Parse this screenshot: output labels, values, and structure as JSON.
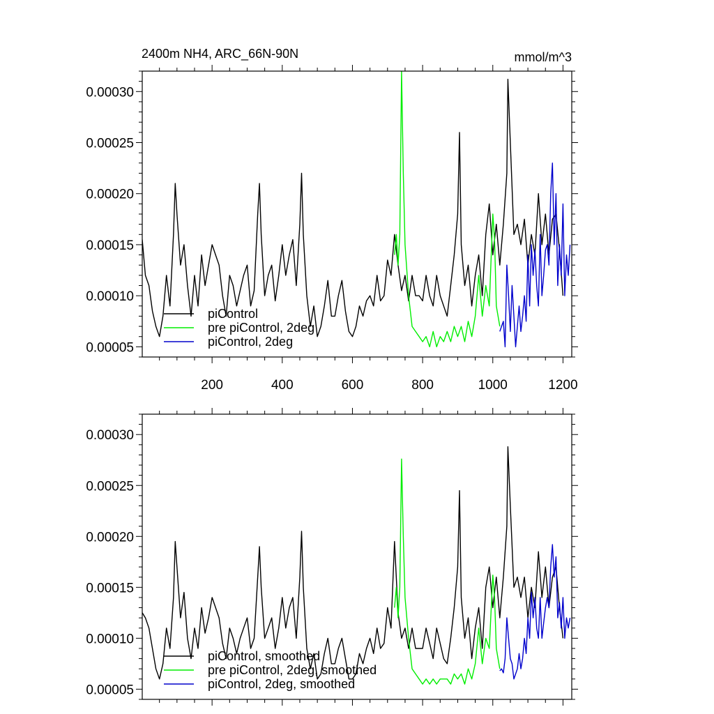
{
  "figure": {
    "title_left": "2400m NH4, ARC_66N-90N",
    "title_right": "mmol/m^3"
  },
  "chart_data": [
    {
      "type": "line",
      "panel": "top",
      "title": "2400m NH4, ARC_66N-90N",
      "units": "mmol/m^3",
      "xlim": [
        1,
        1225
      ],
      "ylim": [
        4e-05,
        0.00032
      ],
      "xticks": [
        200,
        400,
        600,
        800,
        1000,
        1200
      ],
      "yticks": [
        5e-05,
        0.0001,
        0.00015,
        0.0002,
        0.00025,
        0.0003
      ],
      "ytick_labels": [
        "0.00005",
        "0.00010",
        "0.00015",
        "0.00020",
        "0.00025",
        "0.00030"
      ],
      "grid": false,
      "legend": "bottom-left",
      "series": [
        {
          "name": "piControl",
          "color": "#000000",
          "x": [
            1,
            10,
            20,
            30,
            40,
            50,
            60,
            70,
            80,
            90,
            95,
            100,
            110,
            120,
            130,
            140,
            150,
            160,
            170,
            180,
            190,
            200,
            210,
            220,
            230,
            240,
            250,
            260,
            270,
            280,
            290,
            300,
            310,
            320,
            330,
            335,
            340,
            350,
            360,
            370,
            380,
            390,
            400,
            410,
            420,
            430,
            440,
            450,
            455,
            460,
            470,
            480,
            490,
            500,
            510,
            520,
            530,
            540,
            550,
            560,
            570,
            580,
            590,
            600,
            610,
            620,
            630,
            640,
            650,
            660,
            670,
            680,
            690,
            700,
            710,
            720,
            730,
            740,
            750,
            760,
            770,
            780,
            790,
            800,
            810,
            820,
            830,
            840,
            850,
            860,
            870,
            880,
            890,
            900,
            905,
            910,
            920,
            930,
            940,
            950,
            960,
            970,
            980,
            990,
            1000,
            1010,
            1020,
            1030,
            1040,
            1043,
            1050,
            1060,
            1070,
            1080,
            1090,
            1100,
            1110,
            1120,
            1130,
            1140,
            1150,
            1160,
            1170,
            1180,
            1190,
            1200
          ],
          "values": [
            0.000155,
            0.00012,
            0.00011,
            8.5e-05,
            7e-05,
            6e-05,
            8e-05,
            0.00012,
            9e-05,
            0.00016,
            0.00021,
            0.00018,
            0.00013,
            0.00015,
            0.00011,
            8e-05,
            0.00012,
            9e-05,
            0.00014,
            0.00011,
            0.00013,
            0.00015,
            0.00014,
            0.00013,
            0.0001,
            8e-05,
            0.00012,
            0.00011,
            9e-05,
            0.000105,
            0.00012,
            0.00013,
            9e-05,
            0.000105,
            0.00018,
            0.00021,
            0.00016,
            0.0001,
            0.00012,
            0.00013,
            9.5e-05,
            0.00012,
            0.00015,
            0.00012,
            0.00014,
            0.000155,
            0.00011,
            0.00017,
            0.00022,
            0.00016,
            0.0001,
            7e-05,
            9e-05,
            6e-05,
            7e-05,
            9e-05,
            0.000115,
            8e-05,
            8e-05,
            0.0001,
            0.000115,
            8.5e-05,
            6.5e-05,
            6e-05,
            7e-05,
            9e-05,
            8e-05,
            9.5e-05,
            0.0001,
            9e-05,
            0.00012,
            9.5e-05,
            0.0001,
            0.000135,
            0.00012,
            0.00016,
            0.00013,
            0.000105,
            0.00012,
            9.5e-05,
            0.00012,
            0.0001,
            0.0001,
            9.5e-05,
            0.00012,
            0.0001,
            9e-05,
            0.00012,
            0.0001,
            9e-05,
            8e-05,
            0.00011,
            0.00014,
            0.00018,
            0.00026,
            0.00015,
            0.00011,
            0.00013,
            9e-05,
            0.00012,
            0.00014,
            0.0001,
            0.00016,
            0.00019,
            0.00014,
            0.00017,
            0.00013,
            0.00017,
            0.00022,
            0.000312,
            0.00025,
            0.00016,
            0.00017,
            0.00015,
            0.000175,
            0.00013,
            0.00016,
            0.00014,
            0.0002,
            0.00015,
            0.00018,
            0.00014,
            0.000175,
            0.00018,
            0.000145,
            0.0001
          ]
        },
        {
          "name": "pre piControl, 2deg",
          "color": "#00ee00",
          "x": [
            720,
            725,
            730,
            735,
            740,
            745,
            750,
            760,
            770,
            780,
            790,
            800,
            810,
            820,
            830,
            840,
            850,
            860,
            870,
            880,
            890,
            900,
            910,
            920,
            930,
            940,
            950,
            960,
            970,
            980,
            990,
            1000,
            1005,
            1010,
            1020
          ],
          "values": [
            0.00014,
            0.00016,
            0.00013,
            0.00016,
            0.00032,
            0.00022,
            0.00015,
            0.0001,
            7e-05,
            6.5e-05,
            6e-05,
            5.5e-05,
            6e-05,
            5e-05,
            6.5e-05,
            5e-05,
            6e-05,
            5.5e-05,
            6.5e-05,
            5.5e-05,
            7e-05,
            6e-05,
            7e-05,
            5.5e-05,
            7.5e-05,
            6e-05,
            8e-05,
            0.00012,
            8e-05,
            0.00011,
            9e-05,
            0.00018,
            0.000155,
            9e-05,
            7e-05
          ]
        },
        {
          "name": "piControl, 2deg",
          "color": "#0000cc",
          "x": [
            1020,
            1025,
            1030,
            1035,
            1040,
            1045,
            1050,
            1055,
            1060,
            1065,
            1070,
            1075,
            1080,
            1085,
            1090,
            1095,
            1100,
            1105,
            1110,
            1115,
            1120,
            1125,
            1130,
            1135,
            1140,
            1145,
            1150,
            1155,
            1160,
            1165,
            1170,
            1175,
            1180,
            1185,
            1190,
            1195,
            1200,
            1205,
            1210,
            1215,
            1220
          ],
          "values": [
            6.5e-05,
            7e-05,
            7.5e-05,
            5e-05,
            0.00013,
            0.0001,
            6.5e-05,
            0.00011,
            8e-05,
            5e-05,
            7e-05,
            9e-05,
            6.5e-05,
            8e-05,
            0.0001,
            7.5e-05,
            0.00014,
            9e-05,
            0.00015,
            0.00012,
            0.000145,
            0.00011,
            9e-05,
            0.00016,
            0.0001,
            0.00012,
            0.000145,
            0.00015,
            0.00013,
            0.0002,
            0.00023,
            0.00015,
            0.0002,
            0.00011,
            0.00015,
            0.00012,
            0.00019,
            0.0001,
            0.00014,
            0.00012,
            0.00015
          ]
        }
      ]
    },
    {
      "type": "line",
      "panel": "bottom",
      "xlim": [
        1,
        1225
      ],
      "ylim": [
        4e-05,
        0.00032
      ],
      "xticks": [
        200,
        400,
        600,
        800,
        1000,
        1200
      ],
      "yticks": [
        5e-05,
        0.0001,
        0.00015,
        0.0002,
        0.00025,
        0.0003
      ],
      "ytick_labels": [
        "0.00005",
        "0.00010",
        "0.00015",
        "0.00020",
        "0.00025",
        "0.00030"
      ],
      "grid": false,
      "legend": "bottom-left",
      "series": [
        {
          "name": "piControl, smoothed",
          "color": "#000000",
          "x": [
            1,
            10,
            20,
            30,
            40,
            50,
            60,
            70,
            80,
            90,
            95,
            100,
            110,
            120,
            130,
            140,
            150,
            160,
            170,
            180,
            190,
            200,
            210,
            220,
            230,
            240,
            250,
            260,
            270,
            280,
            290,
            300,
            310,
            320,
            330,
            335,
            340,
            350,
            360,
            370,
            380,
            390,
            400,
            410,
            420,
            430,
            440,
            450,
            455,
            460,
            470,
            480,
            490,
            500,
            510,
            520,
            530,
            540,
            550,
            560,
            570,
            580,
            590,
            600,
            610,
            620,
            630,
            640,
            650,
            660,
            670,
            680,
            690,
            700,
            710,
            720,
            730,
            740,
            750,
            760,
            770,
            780,
            790,
            800,
            810,
            820,
            830,
            840,
            850,
            860,
            870,
            880,
            890,
            900,
            905,
            910,
            920,
            930,
            940,
            950,
            960,
            970,
            980,
            990,
            1000,
            1010,
            1020,
            1030,
            1040,
            1043,
            1050,
            1060,
            1070,
            1080,
            1090,
            1100,
            1110,
            1120,
            1130,
            1140,
            1150,
            1160,
            1170,
            1180,
            1190,
            1200
          ],
          "values": [
            0.000125,
            0.00012,
            0.00011,
            9e-05,
            7e-05,
            6e-05,
            7.5e-05,
            0.00011,
            9e-05,
            0.00014,
            0.000195,
            0.00017,
            0.00012,
            0.000145,
            0.0001,
            8e-05,
            0.00011,
            9e-05,
            0.00013,
            0.000105,
            0.00012,
            0.00014,
            0.00013,
            0.00012,
            9.5e-05,
            8e-05,
            0.00011,
            0.0001,
            8.5e-05,
            0.0001,
            0.00011,
            0.00012,
            9e-05,
            0.0001,
            0.00016,
            0.00019,
            0.00015,
            0.0001,
            0.00011,
            0.00012,
            9e-05,
            0.00011,
            0.00014,
            0.00011,
            0.00013,
            0.00014,
            0.0001,
            0.00016,
            0.000205,
            0.00015,
            9e-05,
            7e-05,
            8.5e-05,
            6e-05,
            6.5e-05,
            8.5e-05,
            0.0001,
            7.5e-05,
            7.5e-05,
            9e-05,
            0.0001,
            8e-05,
            6e-05,
            6e-05,
            6.5e-05,
            8.5e-05,
            7.5e-05,
            9e-05,
            0.0001,
            8.5e-05,
            0.00011,
            9e-05,
            9.5e-05,
            0.00013,
            0.00011,
            0.000195,
            0.000125,
            0.0001,
            0.00011,
            9e-05,
            0.00011,
            9e-05,
            9e-05,
            9e-05,
            0.00011,
            9.5e-05,
            8e-05,
            0.00011,
            9.5e-05,
            8e-05,
            7.5e-05,
            0.0001,
            0.00013,
            0.00017,
            0.000245,
            0.00014,
            0.0001,
            0.00012,
            8e-05,
            0.00011,
            0.00013,
            9e-05,
            0.00015,
            0.00017,
            0.00013,
            0.00016,
            0.00012,
            0.00016,
            0.00021,
            0.000288,
            0.00023,
            0.00015,
            0.00016,
            0.00014,
            0.00016,
            0.00012,
            0.00015,
            0.00013,
            0.000185,
            0.00014,
            0.00017,
            0.00013,
            0.00016,
            0.00017,
            0.00013,
            0.0001
          ]
        },
        {
          "name": "pre piControl, 2deg, smoothed",
          "color": "#00ee00",
          "x": [
            720,
            725,
            730,
            735,
            740,
            745,
            750,
            760,
            770,
            780,
            790,
            800,
            810,
            820,
            830,
            840,
            850,
            860,
            870,
            880,
            890,
            900,
            910,
            920,
            930,
            940,
            950,
            960,
            970,
            980,
            990,
            1000,
            1005,
            1010,
            1020
          ],
          "values": [
            0.00013,
            0.00015,
            0.00012,
            0.00015,
            0.000276,
            0.0002,
            0.00014,
            0.0001,
            7e-05,
            6.5e-05,
            6e-05,
            5.5e-05,
            6e-05,
            5.5e-05,
            6e-05,
            5.5e-05,
            6e-05,
            6e-05,
            6e-05,
            5.5e-05,
            6.5e-05,
            6e-05,
            6.5e-05,
            5.5e-05,
            7e-05,
            6e-05,
            7.5e-05,
            0.00011,
            7.5e-05,
            0.0001,
            9e-05,
            0.000162,
            0.00014,
            9e-05,
            7e-05
          ]
        },
        {
          "name": "piControl, 2deg, smoothed",
          "color": "#0000cc",
          "x": [
            1020,
            1025,
            1030,
            1035,
            1040,
            1045,
            1050,
            1055,
            1060,
            1065,
            1070,
            1075,
            1080,
            1085,
            1090,
            1095,
            1100,
            1105,
            1110,
            1115,
            1120,
            1125,
            1130,
            1135,
            1140,
            1145,
            1150,
            1155,
            1160,
            1165,
            1170,
            1175,
            1180,
            1185,
            1190,
            1195,
            1200,
            1205,
            1210,
            1215,
            1220
          ],
          "values": [
            6.8e-05,
            7e-05,
            6.6e-05,
            8e-05,
            0.00012,
            0.0001,
            8e-05,
            7.5e-05,
            6e-05,
            6.5e-05,
            7e-05,
            8.5e-05,
            7e-05,
            8e-05,
            0.0001,
            8.5e-05,
            0.00012,
            0.0001,
            0.000145,
            0.00012,
            0.00014,
            0.00011,
            0.0001,
            0.00014,
            0.0001,
            0.000115,
            0.00013,
            0.00014,
            0.00013,
            0.00017,
            0.000192,
            0.00016,
            0.00018,
            0.00012,
            0.000135,
            0.00011,
            0.00014,
            0.0001,
            0.00012,
            0.00011,
            0.00012
          ]
        }
      ]
    }
  ]
}
